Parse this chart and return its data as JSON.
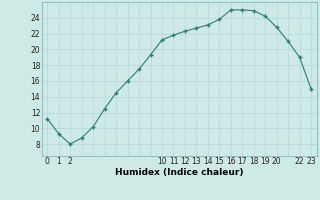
{
  "x": [
    0,
    1,
    2,
    3,
    4,
    5,
    6,
    7,
    8,
    9,
    10,
    11,
    12,
    13,
    14,
    15,
    16,
    17,
    18,
    19,
    20,
    21,
    22,
    23
  ],
  "y": [
    11.2,
    9.3,
    8.0,
    8.8,
    10.2,
    12.5,
    14.5,
    16.0,
    17.5,
    19.3,
    21.2,
    21.8,
    22.3,
    22.7,
    23.1,
    23.8,
    25.0,
    25.0,
    24.9,
    24.2,
    22.8,
    21.0,
    19.0,
    15.0
  ],
  "line_color": "#2e7d6e",
  "marker_color": "#2e7d6e",
  "bg_color": "#ceeae7",
  "grid_major_color": "#b8d8d5",
  "grid_minor_color": "#ceeae7",
  "xlabel": "Humidex (Indice chaleur)",
  "xlim": [
    -0.5,
    23.5
  ],
  "ylim": [
    6.5,
    26
  ],
  "yticks": [
    8,
    10,
    12,
    14,
    16,
    18,
    20,
    22,
    24
  ],
  "xticks": [
    0,
    1,
    2,
    10,
    11,
    12,
    13,
    14,
    15,
    16,
    17,
    18,
    19,
    20,
    22,
    23
  ],
  "tick_fontsize": 5.5,
  "xlabel_fontsize": 6.5
}
